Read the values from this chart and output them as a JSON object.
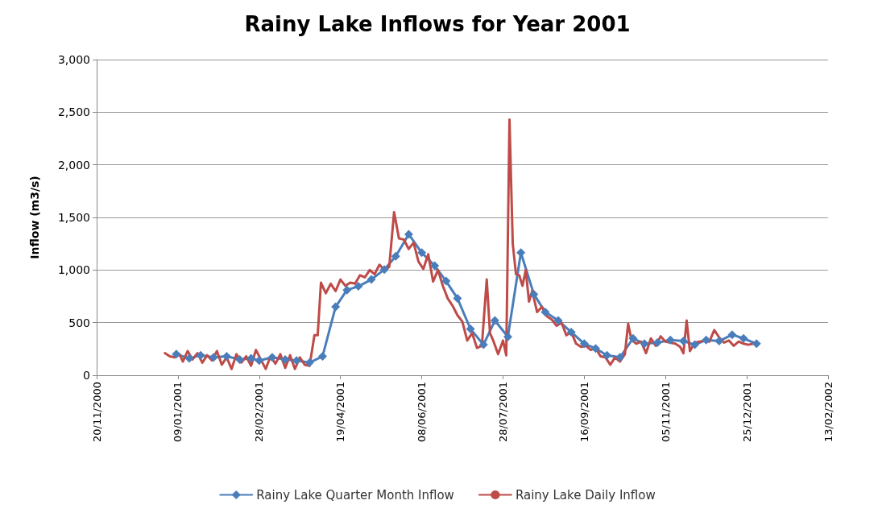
{
  "chart_data": {
    "type": "line",
    "title": "Rainy Lake Inflows for Year 2001",
    "ylabel": "Inflow (m3/s)",
    "xlim": [
      "2000-11-20",
      "2002-02-13"
    ],
    "xticks": [
      {
        "value": "2000-11-20",
        "label": "20/11/2000"
      },
      {
        "value": "2001-01-09",
        "label": "09/01/2001"
      },
      {
        "value": "2001-02-28",
        "label": "28/02/2001"
      },
      {
        "value": "2001-04-19",
        "label": "19/04/2001"
      },
      {
        "value": "2001-06-08",
        "label": "08/06/2001"
      },
      {
        "value": "2001-07-28",
        "label": "28/07/2001"
      },
      {
        "value": "2001-09-16",
        "label": "16/09/2001"
      },
      {
        "value": "2001-11-05",
        "label": "05/11/2001"
      },
      {
        "value": "2001-12-25",
        "label": "25/12/2001"
      },
      {
        "value": "2002-02-13",
        "label": "13/02/2002"
      }
    ],
    "ylim": [
      0,
      3000
    ],
    "yticks": [
      0,
      {
        "value": 500,
        "label": "500"
      },
      {
        "value": 1000,
        "label": "1,000"
      },
      {
        "value": 1500,
        "label": "1,500"
      },
      {
        "value": 2000,
        "label": "2,000"
      },
      {
        "value": 2500,
        "label": "2,500"
      },
      {
        "value": 3000,
        "label": "3,000"
      }
    ],
    "grid": "y",
    "legend": "bottom",
    "line_style": "solid",
    "series": [
      {
        "name": "Rainy Lake Quarter Month Inflow",
        "color": "#4a7ebb",
        "marker": "diamond",
        "x": [
          "2001-01-08",
          "2001-01-16",
          "2001-01-23",
          "2001-01-31",
          "2001-02-08",
          "2001-02-16",
          "2001-02-23",
          "2001-02-28",
          "2001-03-08",
          "2001-03-16",
          "2001-03-23",
          "2001-03-31",
          "2001-04-08",
          "2001-04-16",
          "2001-04-23",
          "2001-04-30",
          "2001-05-08",
          "2001-05-16",
          "2001-05-23",
          "2001-05-31",
          "2001-06-08",
          "2001-06-16",
          "2001-06-23",
          "2001-06-30",
          "2001-07-08",
          "2001-07-16",
          "2001-07-23",
          "2001-07-31",
          "2001-08-08",
          "2001-08-16",
          "2001-08-23",
          "2001-08-31",
          "2001-09-08",
          "2001-09-16",
          "2001-09-23",
          "2001-09-30",
          "2001-10-08",
          "2001-10-16",
          "2001-10-23",
          "2001-10-31",
          "2001-11-08",
          "2001-11-16",
          "2001-11-23",
          "2001-11-30",
          "2001-12-08",
          "2001-12-16",
          "2001-12-23",
          "2001-12-31"
        ],
        "values": [
          200,
          160,
          190,
          170,
          180,
          150,
          160,
          140,
          170,
          150,
          140,
          120,
          180,
          650,
          810,
          845,
          910,
          1005,
          1130,
          1340,
          1165,
          1040,
          895,
          730,
          440,
          290,
          520,
          365,
          1165,
          770,
          600,
          520,
          410,
          300,
          255,
          190,
          170,
          350,
          300,
          310,
          335,
          325,
          290,
          335,
          325,
          385,
          350,
          300
        ]
      },
      {
        "name": "Rainy Lake Daily Inflow",
        "color": "#be4b48",
        "marker": "none",
        "x": [
          "2001-01-01",
          "2001-01-04",
          "2001-01-07",
          "2001-01-10",
          "2001-01-12",
          "2001-01-15",
          "2001-01-18",
          "2001-01-21",
          "2001-01-24",
          "2001-01-27",
          "2001-01-30",
          "2001-02-02",
          "2001-02-05",
          "2001-02-08",
          "2001-02-11",
          "2001-02-14",
          "2001-02-17",
          "2001-02-20",
          "2001-02-23",
          "2001-02-26",
          "2001-03-01",
          "2001-03-04",
          "2001-03-07",
          "2001-03-10",
          "2001-03-13",
          "2001-03-16",
          "2001-03-19",
          "2001-03-22",
          "2001-03-25",
          "2001-03-28",
          "2001-03-31",
          "2001-04-03",
          "2001-04-05",
          "2001-04-07",
          "2001-04-10",
          "2001-04-13",
          "2001-04-16",
          "2001-04-19",
          "2001-04-22",
          "2001-04-25",
          "2001-04-28",
          "2001-05-01",
          "2001-05-04",
          "2001-05-07",
          "2001-05-10",
          "2001-05-13",
          "2001-05-16",
          "2001-05-19",
          "2001-05-22",
          "2001-05-25",
          "2001-05-28",
          "2001-05-31",
          "2001-06-03",
          "2001-06-06",
          "2001-06-09",
          "2001-06-12",
          "2001-06-15",
          "2001-06-18",
          "2001-06-21",
          "2001-06-24",
          "2001-06-27",
          "2001-06-30",
          "2001-07-03",
          "2001-07-06",
          "2001-07-09",
          "2001-07-12",
          "2001-07-15",
          "2001-07-18",
          "2001-07-20",
          "2001-07-22",
          "2001-07-25",
          "2001-07-28",
          "2001-07-30",
          "2001-08-01",
          "2001-08-03",
          "2001-08-05",
          "2001-08-07",
          "2001-08-09",
          "2001-08-11",
          "2001-08-13",
          "2001-08-15",
          "2001-08-18",
          "2001-08-21",
          "2001-08-24",
          "2001-08-27",
          "2001-08-30",
          "2001-09-02",
          "2001-09-05",
          "2001-09-08",
          "2001-09-11",
          "2001-09-14",
          "2001-09-17",
          "2001-09-20",
          "2001-09-23",
          "2001-09-26",
          "2001-09-29",
          "2001-10-02",
          "2001-10-05",
          "2001-10-08",
          "2001-10-11",
          "2001-10-13",
          "2001-10-15",
          "2001-10-18",
          "2001-10-21",
          "2001-10-24",
          "2001-10-27",
          "2001-10-30",
          "2001-11-02",
          "2001-11-05",
          "2001-11-08",
          "2001-11-11",
          "2001-11-14",
          "2001-11-16",
          "2001-11-18",
          "2001-11-20",
          "2001-11-23",
          "2001-11-26",
          "2001-11-29",
          "2001-12-02",
          "2001-12-05",
          "2001-12-08",
          "2001-12-11",
          "2001-12-14",
          "2001-12-17",
          "2001-12-20",
          "2001-12-23",
          "2001-12-26",
          "2001-12-29"
        ],
        "values": [
          210,
          180,
          170,
          200,
          130,
          230,
          150,
          210,
          120,
          190,
          140,
          230,
          100,
          170,
          60,
          200,
          120,
          180,
          90,
          240,
          150,
          60,
          180,
          110,
          200,
          70,
          190,
          60,
          170,
          100,
          90,
          380,
          380,
          880,
          780,
          870,
          800,
          910,
          850,
          880,
          870,
          950,
          930,
          1000,
          960,
          1050,
          1000,
          1030,
          1550,
          1300,
          1290,
          1200,
          1260,
          1080,
          1010,
          1150,
          890,
          1000,
          850,
          730,
          660,
          570,
          510,
          330,
          400,
          260,
          280,
          910,
          400,
          330,
          200,
          330,
          190,
          2430,
          1250,
          960,
          950,
          850,
          1000,
          700,
          800,
          600,
          650,
          560,
          530,
          470,
          500,
          380,
          410,
          300,
          270,
          280,
          240,
          260,
          180,
          170,
          100,
          170,
          130,
          200,
          490,
          340,
          300,
          320,
          210,
          350,
          280,
          370,
          320,
          310,
          300,
          270,
          210,
          520,
          230,
          310,
          320,
          330,
          320,
          430,
          360,
          310,
          330,
          280,
          320,
          300,
          290,
          300
        ]
      }
    ]
  }
}
